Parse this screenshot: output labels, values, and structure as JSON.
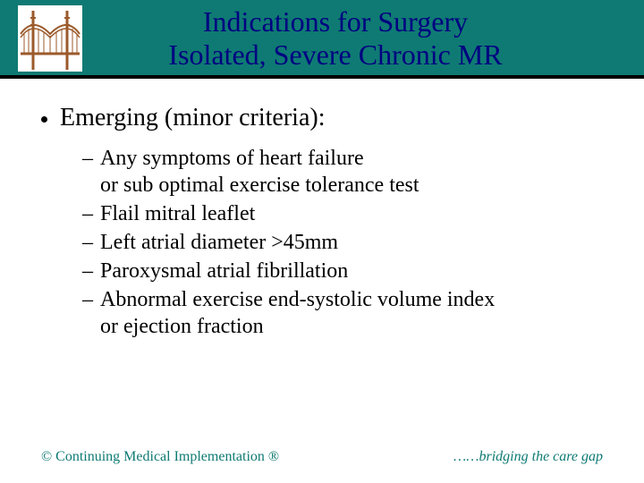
{
  "colors": {
    "header_bg": "#0f7a73",
    "title_color": "#000080",
    "underline_color": "#000000",
    "body_text": "#000000",
    "footer_text": "#0f7a73",
    "page_bg": "#ffffff",
    "logo_bg": "#ffffff",
    "bridge_stroke": "#9b5a2b"
  },
  "typography": {
    "title_fontsize": 32,
    "main_bullet_fontsize": 28,
    "sub_item_fontsize": 24,
    "footer_fontsize": 16,
    "font_family": "Times New Roman"
  },
  "title": {
    "line1": "Indications for Surgery",
    "line2": "Isolated, Severe Chronic MR"
  },
  "main_bullet": "Emerging (minor criteria):",
  "sub_items": [
    "Any symptoms of heart failure\nor sub optimal exercise tolerance test",
    "Flail mitral leaflet",
    "Left atrial diameter >45mm",
    "Paroxysmal atrial fibrillation",
    "Abnormal exercise end-systolic volume index\nor ejection fraction"
  ],
  "footer": {
    "left": "© Continuing Medical Implementation ®",
    "right": "……bridging the care gap"
  },
  "logo": {
    "semantic": "golden-gate-bridge-icon"
  }
}
